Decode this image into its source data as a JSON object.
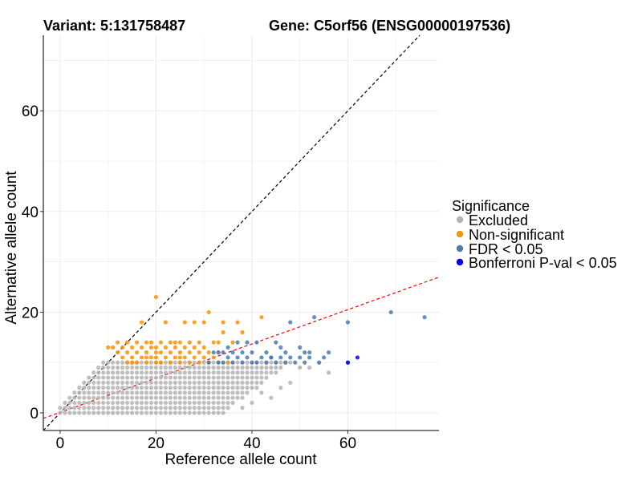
{
  "chart_data": {
    "type": "scatter",
    "title_left": "Variant: 5:131758487",
    "title_right": "Gene: C5orf56 (ENSG00000197536)",
    "xlabel": "Reference allele count",
    "ylabel": "Alternative allele count",
    "xlim": [
      -3.5,
      79
    ],
    "ylim": [
      -3.5,
      75
    ],
    "xticks": [
      0,
      20,
      40,
      60
    ],
    "yticks": [
      0,
      20,
      40,
      60
    ],
    "xtick_labels": [
      "0",
      "20",
      "40",
      "60"
    ],
    "ytick_labels": [
      "0",
      "20",
      "40",
      "60"
    ],
    "grid": true,
    "reference_lines": [
      {
        "name": "identity",
        "slope": 1,
        "intercept": 0,
        "style": "dashed",
        "color": "#000000"
      },
      {
        "name": "fit",
        "slope": 0.34,
        "intercept": 0.1,
        "style": "dashed",
        "color": "#ff0000"
      }
    ],
    "legend": {
      "title": "Significance",
      "position": "right",
      "entries": [
        {
          "label": "Excluded",
          "color": "#b3b3b3"
        },
        {
          "label": "Non-significant",
          "color": "#f5930a"
        },
        {
          "label": "FDR < 0.05",
          "color": "#4a7bb0"
        },
        {
          "label": "Bonferroni P-val < 0.05",
          "color": "#0000ff"
        }
      ]
    },
    "series": [
      {
        "name": "Excluded",
        "note": "dense region of points below ~11 alternative counts with reference counts 0-52; expanded by script",
        "dense_region": {
          "x_range": [
            0,
            52
          ],
          "y_range": [
            0,
            10
          ],
          "rule": "y <= x + 1"
        },
        "x": [
          48,
          50,
          52,
          56,
          54,
          46,
          44,
          42,
          40,
          38
        ],
        "y": [
          6,
          9,
          9,
          8,
          10,
          5,
          3,
          4,
          2,
          1
        ]
      },
      {
        "name": "Non-significant",
        "x": [
          20,
          31,
          42,
          17,
          22,
          26,
          28,
          30,
          34,
          37,
          10,
          12,
          14,
          16,
          18,
          19,
          21,
          23,
          24,
          25,
          27,
          29,
          32,
          33,
          36,
          11,
          13,
          15,
          17,
          19,
          20,
          22,
          24,
          26,
          28,
          30,
          12,
          14,
          16,
          18,
          20,
          21,
          23,
          25,
          27,
          29,
          31,
          33,
          13,
          15,
          17,
          18,
          19,
          20,
          22,
          24,
          25,
          26,
          28,
          30,
          32,
          14,
          15,
          16,
          18,
          20,
          21,
          23,
          25,
          27,
          29,
          31,
          33,
          35,
          34,
          38
        ],
        "y": [
          23,
          20,
          19,
          18,
          18,
          18,
          18,
          18,
          18,
          18,
          13,
          14,
          14,
          14,
          14,
          14,
          14,
          14,
          14,
          14,
          14,
          14,
          14,
          14,
          14,
          13,
          13,
          13,
          13,
          13,
          13,
          13,
          13,
          13,
          13,
          13,
          12,
          12,
          12,
          12,
          12,
          12,
          12,
          12,
          12,
          12,
          12,
          12,
          11,
          11,
          11,
          11,
          11,
          11,
          11,
          11,
          11,
          11,
          11,
          11,
          11,
          10,
          10,
          10,
          10,
          10,
          10,
          10,
          10,
          10,
          10,
          10,
          10,
          10,
          16,
          16
        ]
      },
      {
        "name": "FDR < 0.05",
        "x": [
          69,
          76,
          53,
          48,
          60,
          35,
          37,
          39,
          41,
          45,
          46,
          50,
          52,
          56,
          47,
          51,
          32,
          33,
          34,
          36,
          38,
          40,
          43,
          44,
          48,
          55,
          35,
          37,
          39,
          42,
          44,
          46,
          50,
          52,
          60,
          31,
          33,
          34,
          36,
          38,
          40,
          41,
          43,
          45,
          47,
          49,
          51,
          54
        ],
        "y": [
          20,
          19,
          19,
          18,
          18,
          13,
          14,
          14,
          14,
          14,
          13,
          13,
          12,
          12,
          12,
          12,
          12,
          12,
          12,
          12,
          12,
          12,
          12,
          11,
          11,
          11,
          11,
          11,
          11,
          11,
          11,
          11,
          11,
          11,
          10,
          10,
          10,
          10,
          10,
          10,
          10,
          10,
          10,
          10,
          10,
          10,
          10,
          10
        ]
      },
      {
        "name": "Bonferroni P-val < 0.05",
        "x": [
          60,
          62
        ],
        "y": [
          10,
          11
        ]
      }
    ]
  }
}
